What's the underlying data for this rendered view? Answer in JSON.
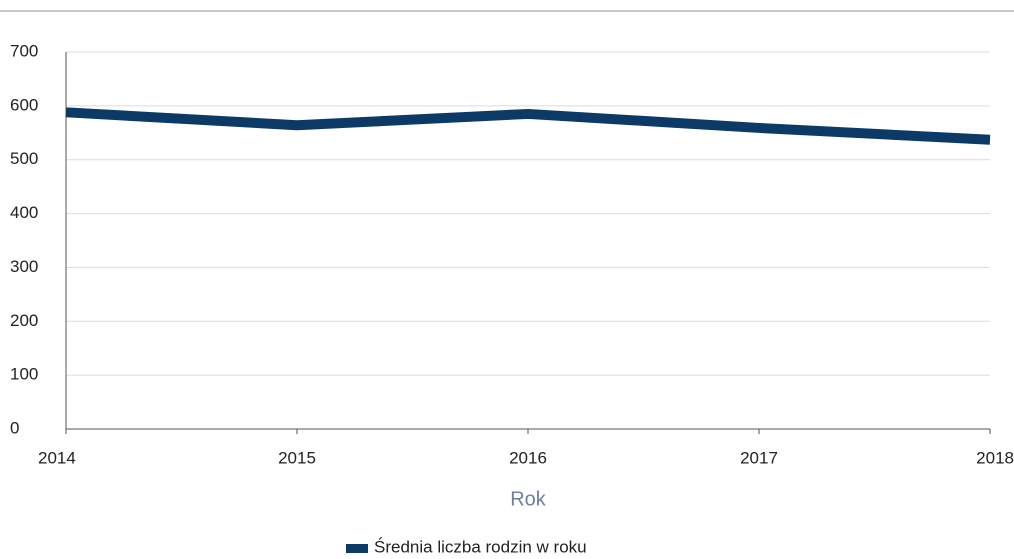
{
  "chart_data": {
    "type": "line",
    "x": [
      2014,
      2015,
      2016,
      2017,
      2018
    ],
    "xlim": [
      2014,
      2018
    ],
    "xticks": [
      2014,
      2015,
      2016,
      2017,
      2018
    ],
    "ylim": [
      0,
      700
    ],
    "yticks": [
      0,
      100,
      200,
      300,
      400,
      500,
      600,
      700
    ],
    "x_label": "Rok",
    "grid": true,
    "legend": "bottom",
    "series": [
      {
        "name": "Średnia liczba rodzin w roku",
        "color": "#0b3a66",
        "values": [
          588,
          564,
          585,
          559,
          537
        ]
      }
    ]
  }
}
